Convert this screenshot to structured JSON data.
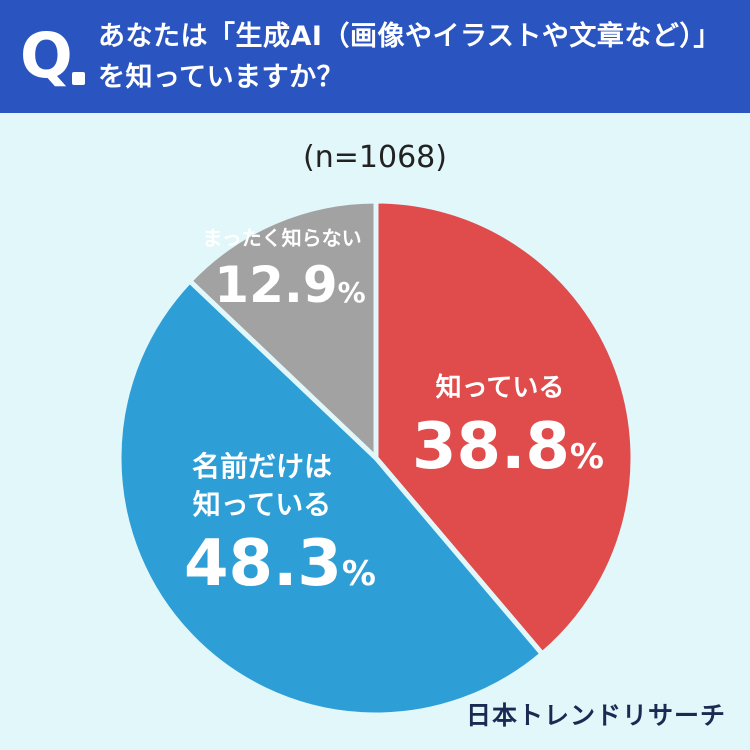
{
  "header": {
    "q_mark": "Q",
    "question": "あなたは「生成AI（画像やイラストや文章など）」を知っていますか？"
  },
  "colors": {
    "header_bg": "#2a55c0",
    "background": "#e2f7fa",
    "know": "#e04b4c",
    "name_only": "#2d9fd6",
    "dont_know": "#a2a2a2"
  },
  "chart_data": {
    "type": "pie",
    "subtitle": "(n=1068)",
    "unit": "%",
    "slices": [
      {
        "label": "知っている",
        "value": 38.8,
        "value_text": "38.8",
        "color": "#e04b4c"
      },
      {
        "label": "名前だけは知っている",
        "value": 48.3,
        "value_text": "48.3",
        "color": "#2d9fd6"
      },
      {
        "label": "まったく知らない",
        "value": 12.9,
        "value_text": "12.9",
        "color": "#a2a2a2"
      }
    ]
  },
  "footer": {
    "brand": "日本トレンドリサーチ"
  }
}
